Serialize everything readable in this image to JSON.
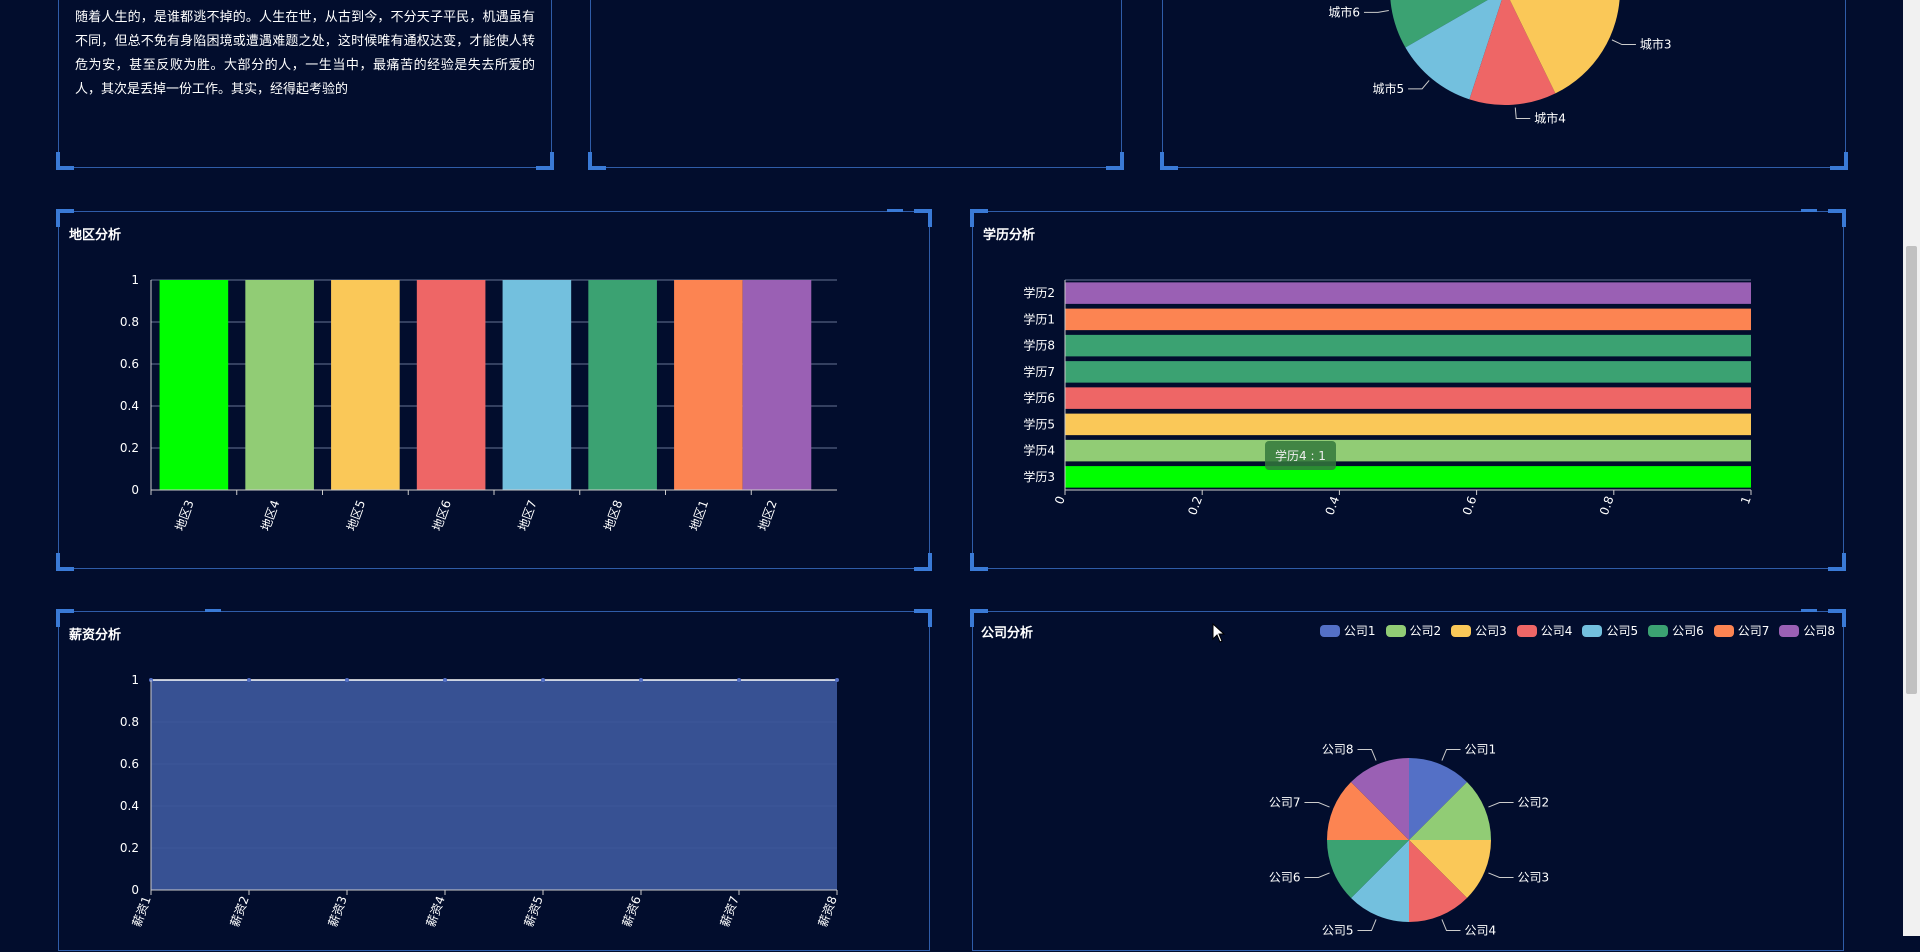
{
  "article": {
    "text": "如果你想一生摆脱苦难，你就得是神或者是死尸。这句话形象地说明了挫折是伴随着人生的，是谁都逃不掉的。人生在世，从古到今，不分天子平民，机遇虽有不同，但总不免有身陷困境或遭遇难题之处，这时候唯有通权达变，才能使人转危为安，甚至反败为胜。大部分的人，一生当中，最痛苦的经验是失去所爱的人，其次是丢掉一份工作。其实，经得起考验的"
  },
  "panels": {
    "region": {
      "title": "地区分析"
    },
    "education": {
      "title": "学历分析"
    },
    "salary": {
      "title": "薪资分析"
    },
    "company": {
      "title": "公司分析"
    }
  },
  "tooltip": {
    "text": "学历4 : 1"
  },
  "colors": {
    "background": "#020d2d",
    "border": "#2f5ca8",
    "corner": "#3a7ad6",
    "palette": [
      "#5470c6",
      "#91cc75",
      "#fac858",
      "#ee6666",
      "#73c0de",
      "#3ba272",
      "#fc8452",
      "#9a60b4",
      "#00ff00"
    ],
    "salary_fill": "#3a5599"
  },
  "chart_data": [
    {
      "id": "city-pie",
      "type": "pie",
      "labels": [
        "城市6",
        "城市3",
        "城市5",
        "城市4"
      ],
      "note_visible_labels": "partially visible pie"
    },
    {
      "id": "region-bar",
      "type": "bar",
      "title": "地区分析",
      "categories": [
        "地区3",
        "地区4",
        "地区5",
        "地区6",
        "地区7",
        "地区8",
        "地区1",
        "地区2"
      ],
      "values": [
        1,
        1,
        1,
        1,
        1,
        1,
        1,
        1
      ],
      "colors": [
        "#00ff00",
        "#91cc75",
        "#fac858",
        "#ee6666",
        "#73c0de",
        "#3ba272",
        "#fc8452",
        "#9a60b4"
      ],
      "ylim": [
        0,
        1
      ],
      "yticks": [
        "0",
        "0.2",
        "0.4",
        "0.6",
        "0.8",
        "1"
      ]
    },
    {
      "id": "education-bar",
      "type": "bar",
      "orientation": "horizontal",
      "title": "学历分析",
      "categories": [
        "学历3",
        "学历4",
        "学历5",
        "学历6",
        "学历7",
        "学历8",
        "学历1",
        "学历2"
      ],
      "values": [
        1,
        1,
        1,
        1,
        1,
        1,
        1,
        1
      ],
      "colors": [
        "#00ff00",
        "#91cc75",
        "#fac858",
        "#ee6666",
        "#3ba272",
        "#3ba272",
        "#fc8452",
        "#9a60b4"
      ],
      "xlim": [
        0,
        1
      ],
      "xticks": [
        "0",
        "0.2",
        "0.4",
        "0.6",
        "0.8",
        "1"
      ]
    },
    {
      "id": "salary-area",
      "type": "area",
      "title": "薪资分析",
      "categories": [
        "薪资1",
        "薪资2",
        "薪资3",
        "薪资4",
        "薪资5",
        "薪资6",
        "薪资7",
        "薪资8"
      ],
      "values": [
        1,
        1,
        1,
        1,
        1,
        1,
        1,
        1
      ],
      "ylim": [
        0,
        1
      ],
      "yticks": [
        "0",
        "0.2",
        "0.4",
        "0.6",
        "0.8",
        "1"
      ]
    },
    {
      "id": "company-pie",
      "type": "pie",
      "title": "公司分析",
      "labels": [
        "公司1",
        "公司2",
        "公司3",
        "公司4",
        "公司5",
        "公司6",
        "公司7",
        "公司8"
      ],
      "values": [
        1,
        1,
        1,
        1,
        1,
        1,
        1,
        1
      ],
      "colors": [
        "#5470c6",
        "#91cc75",
        "#fac858",
        "#ee6666",
        "#73c0de",
        "#3ba272",
        "#fc8452",
        "#9a60b4"
      ],
      "legend": "top-right"
    }
  ]
}
